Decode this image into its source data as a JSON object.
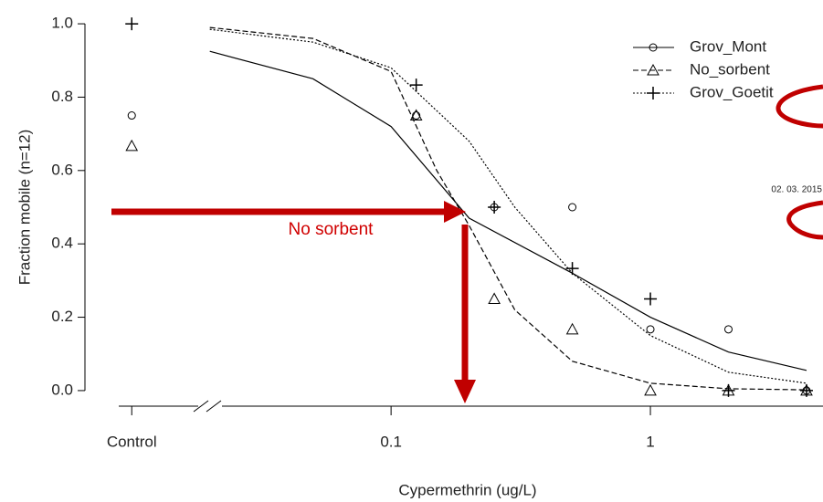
{
  "chart_data": {
    "type": "line",
    "xlabel": "Cypermethrin (ug/L)",
    "ylabel": "Fraction mobile (n=12)",
    "xscale": "log",
    "xlim": [
      0.0066,
      4.63
    ],
    "xticks": [
      {
        "value": 0.01,
        "label": "Control"
      },
      0.1,
      1
    ],
    "ylim": [
      -0.04,
      1.04
    ],
    "yticks": [
      {
        "value": 0,
        "label": "0.0"
      },
      {
        "value": 0.2,
        "label": "0.2"
      },
      {
        "value": 0.4,
        "label": "0.4"
      },
      {
        "value": 0.6,
        "label": "0.6"
      },
      {
        "value": 0.8,
        "label": "0.8"
      },
      {
        "value": 1,
        "label": "1.0"
      }
    ],
    "legend": "upper right",
    "series": [
      {
        "name": "Grov_Mont",
        "color": "#000000",
        "marker": "circle",
        "dash": "solid",
        "x": [
          0.01,
          0.125,
          0.25,
          0.5,
          1,
          2,
          4
        ],
        "values": [
          0.75,
          0.75,
          0.5,
          0.5,
          0.167,
          0.167,
          0
        ],
        "fit": {
          "x": [
            0.02,
            0.05,
            0.1,
            0.2,
            0.5,
            1,
            2,
            4
          ],
          "values": [
            0.925,
            0.85,
            0.72,
            0.47,
            0.32,
            0.2,
            0.105,
            0.055
          ]
        }
      },
      {
        "name": "No_sorbent",
        "color": "#000000",
        "marker": "triangle",
        "dash": "dashed",
        "x": [
          0.01,
          0.125,
          0.25,
          0.5,
          1,
          2,
          4
        ],
        "values": [
          0.667,
          0.75,
          0.25,
          0.167,
          0,
          0,
          0
        ],
        "fit": {
          "x": [
            0.02,
            0.05,
            0.1,
            0.15,
            0.2,
            0.3,
            0.5,
            1,
            2,
            4
          ],
          "values": [
            0.99,
            0.96,
            0.87,
            0.6,
            0.45,
            0.22,
            0.08,
            0.02,
            0.005,
            0.002
          ]
        }
      },
      {
        "name": "Grov_Goetit",
        "color": "#000000",
        "marker": "plus",
        "dash": "dotted",
        "x": [
          0.01,
          0.125,
          0.25,
          0.5,
          1,
          2,
          4
        ],
        "values": [
          1,
          0.833,
          0.5,
          0.333,
          0.25,
          0,
          0
        ],
        "fit": {
          "x": [
            0.02,
            0.05,
            0.1,
            0.2,
            0.3,
            0.5,
            1,
            2,
            4
          ],
          "values": [
            0.985,
            0.95,
            0.88,
            0.68,
            0.5,
            0.32,
            0.15,
            0.05,
            0.02
          ]
        }
      }
    ],
    "annotations": [
      "No sorbent",
      "02. 03. 2015"
    ]
  }
}
